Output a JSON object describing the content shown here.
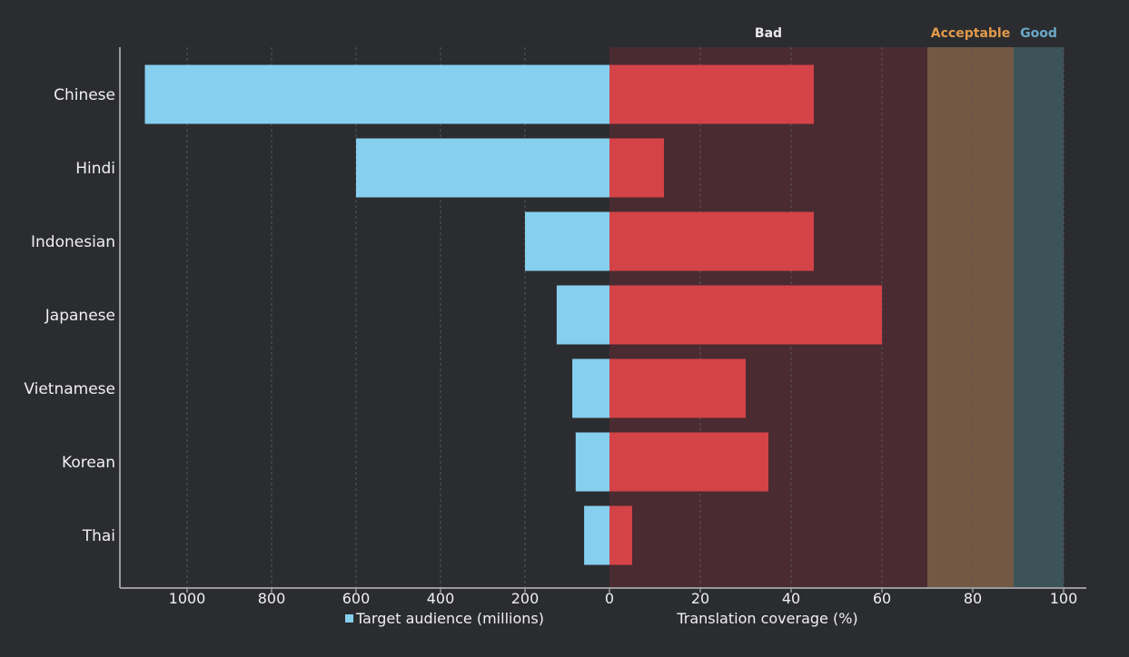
{
  "chart_data": {
    "type": "bar",
    "orientation": "horizontal",
    "layout": "diverging",
    "categories": [
      "Chinese",
      "Hindi",
      "Indonesian",
      "Japanese",
      "Vietnamese",
      "Korean",
      "Thai"
    ],
    "series": [
      {
        "name": "Target audience (millions)",
        "color": "#86cfee",
        "values": [
          1100,
          600,
          200,
          125,
          88,
          80,
          60
        ]
      },
      {
        "name": "Translation coverage (%)",
        "color": "#d44347",
        "values": [
          45,
          12,
          45,
          60,
          30,
          35,
          5
        ]
      }
    ],
    "left_axis": {
      "label": "Target audience (millions)",
      "range": [
        0,
        1100
      ],
      "ticks": [
        "1000",
        "800",
        "600",
        "400",
        "200",
        "0"
      ],
      "tick_values": [
        1000,
        800,
        600,
        400,
        200,
        0
      ]
    },
    "right_axis": {
      "label": "Translation coverage (%)",
      "range": [
        0,
        100
      ],
      "ticks": [
        "20",
        "40",
        "60",
        "80",
        "100"
      ],
      "tick_values": [
        20,
        40,
        60,
        80,
        100
      ]
    },
    "zones": [
      {
        "label": "Bad",
        "from": 0,
        "to": 70,
        "color": "#4a2b31",
        "label_color": "#e8e8e8"
      },
      {
        "label": "Acceptable",
        "from": 70,
        "to": 89,
        "color": "#735843",
        "label_color": "#e09a4a"
      },
      {
        "label": "Good",
        "from": 89,
        "to": 100,
        "color": "#3c5358",
        "label_color": "#6aa8c8"
      }
    ],
    "grid": true,
    "legend": "bottom"
  }
}
